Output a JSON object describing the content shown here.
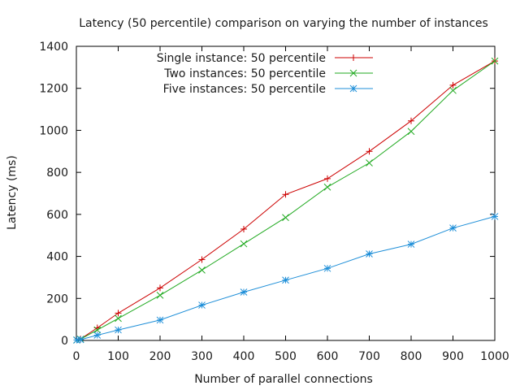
{
  "chart_data": {
    "type": "line",
    "title": "Latency (50 percentile) comparison on varying the number of instances",
    "xlabel": "Number of parallel connections",
    "ylabel": "Latency (ms)",
    "xlim": [
      0,
      1000
    ],
    "ylim": [
      0,
      1400
    ],
    "x_ticks": [
      0,
      100,
      200,
      300,
      400,
      500,
      600,
      700,
      800,
      900,
      1000
    ],
    "y_ticks": [
      0,
      200,
      400,
      600,
      800,
      1000,
      1200,
      1400
    ],
    "grid": false,
    "legend_position": "top-center",
    "x": [
      1,
      10,
      50,
      100,
      200,
      300,
      400,
      500,
      600,
      700,
      800,
      900,
      1000
    ],
    "series": [
      {
        "name": "Single instance: 50 percentile",
        "color": "#cc0000",
        "marker": "plus",
        "values": [
          2,
          7,
          60,
          130,
          250,
          385,
          530,
          695,
          770,
          900,
          1045,
          1215,
          1330
        ]
      },
      {
        "name": "Two instances: 50 percentile",
        "color": "#22aa22",
        "marker": "cross",
        "values": [
          2,
          6,
          50,
          105,
          215,
          335,
          460,
          585,
          730,
          845,
          995,
          1190,
          1330
        ]
      },
      {
        "name": "Five instances: 50 percentile",
        "color": "#1f8fd8",
        "marker": "star",
        "values": [
          2,
          4,
          25,
          50,
          97,
          168,
          230,
          287,
          343,
          412,
          458,
          535,
          590
        ]
      }
    ]
  }
}
